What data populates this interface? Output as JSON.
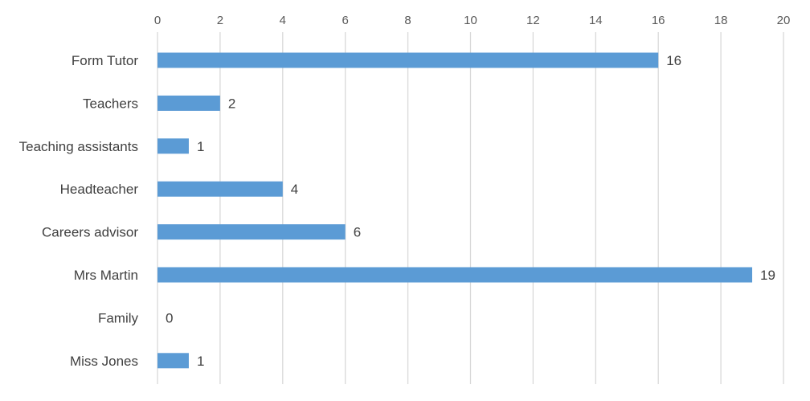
{
  "chart_data": {
    "type": "bar",
    "orientation": "horizontal",
    "categories": [
      "Form Tutor",
      "Teachers",
      "Teaching assistants",
      "Headteacher",
      "Careers advisor",
      "Mrs Martin",
      "Family",
      "Miss Jones"
    ],
    "values": [
      16,
      2,
      1,
      4,
      6,
      19,
      0,
      1
    ],
    "xlim": [
      0,
      20
    ],
    "xticks": [
      0,
      2,
      4,
      6,
      8,
      10,
      12,
      14,
      16,
      18,
      20
    ],
    "x_axis_position": "top",
    "grid": true,
    "data_labels": true,
    "bar_color": "#5b9bd5",
    "grid_color": "#d9d9d9",
    "title": "",
    "xlabel": "",
    "ylabel": ""
  }
}
